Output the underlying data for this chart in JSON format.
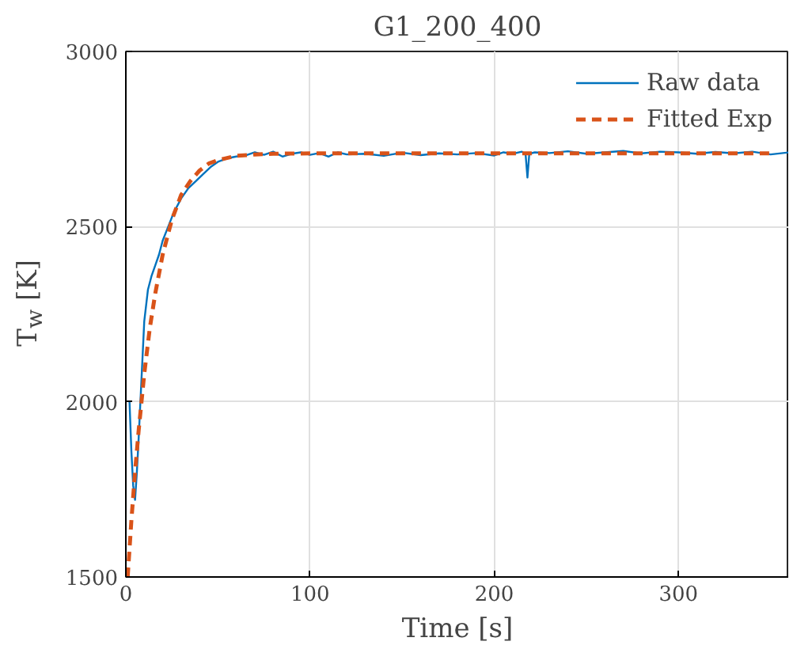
{
  "chart_data": {
    "type": "line",
    "title": "G1_200_400",
    "xlabel": "Time [s]",
    "ylabel": "T$_{w}$ [K]",
    "xlim": [
      0,
      360
    ],
    "ylim": [
      1500,
      3000
    ],
    "xticks": [
      0,
      100,
      200,
      300
    ],
    "yticks": [
      1500,
      2000,
      2500,
      3000
    ],
    "grid": true,
    "legend": "top right",
    "series": [
      {
        "name": "Raw data",
        "color": "#0072bd",
        "line_style": "solid",
        "x": [
          1.5,
          2,
          3,
          4,
          5,
          6,
          7,
          8,
          9,
          10,
          12,
          14,
          16,
          18,
          20,
          23,
          26,
          30,
          34,
          38,
          42,
          46,
          50,
          55,
          60,
          65,
          70,
          75,
          80,
          85,
          90,
          95,
          100,
          105,
          110,
          115,
          120,
          130,
          140,
          150,
          160,
          170,
          180,
          190,
          200,
          205,
          210,
          215,
          217,
          218,
          219,
          222,
          230,
          240,
          250,
          260,
          270,
          280,
          290,
          300,
          310,
          320,
          330,
          340,
          350,
          360
        ],
        "values": [
          2000,
          2000,
          1860,
          1760,
          1720,
          1800,
          1900,
          2010,
          2120,
          2230,
          2320,
          2360,
          2390,
          2420,
          2460,
          2500,
          2540,
          2580,
          2610,
          2630,
          2650,
          2670,
          2685,
          2695,
          2700,
          2703,
          2712,
          2705,
          2714,
          2700,
          2708,
          2712,
          2705,
          2710,
          2700,
          2712,
          2706,
          2708,
          2702,
          2711,
          2704,
          2709,
          2706,
          2710,
          2703,
          2712,
          2708,
          2714,
          2706,
          2640,
          2708,
          2712,
          2710,
          2715,
          2708,
          2712,
          2716,
          2709,
          2714,
          2712,
          2708,
          2713,
          2709,
          2714,
          2706,
          2712
        ]
      },
      {
        "name": "Fitted Exp",
        "color": "#d95319",
        "line_style": "dashed",
        "x": [
          1,
          3,
          5,
          7,
          10,
          13,
          16,
          20,
          25,
          30,
          35,
          40,
          45,
          50,
          60,
          70,
          80,
          100,
          150,
          200,
          250,
          300,
          350
        ],
        "values": [
          1500,
          1660,
          1800,
          1920,
          2080,
          2210,
          2310,
          2420,
          2520,
          2590,
          2630,
          2660,
          2680,
          2690,
          2702,
          2706,
          2708,
          2709,
          2709,
          2709,
          2709,
          2709,
          2709
        ]
      }
    ]
  }
}
